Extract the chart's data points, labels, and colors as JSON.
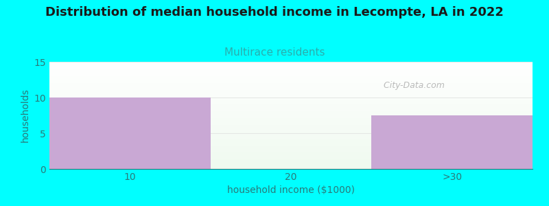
{
  "title": "Distribution of median household income in Lecompte, LA in 2022",
  "subtitle": "Multirace residents",
  "xlabel": "household income ($1000)",
  "ylabel": "households",
  "categories": [
    "10",
    "20",
    ">30"
  ],
  "values": [
    10,
    0,
    7.5
  ],
  "bar_color": "#c9a8d4",
  "ylim": [
    0,
    15
  ],
  "yticks": [
    0,
    5,
    10,
    15
  ],
  "background_color": "#00FFFF",
  "title_fontsize": 13,
  "subtitle_fontsize": 11,
  "subtitle_color": "#2aadad",
  "title_color": "#1a1a1a",
  "axis_label_color": "#2a7a7a",
  "tick_color": "#2a7a7a",
  "watermark_text": "City-Data.com"
}
